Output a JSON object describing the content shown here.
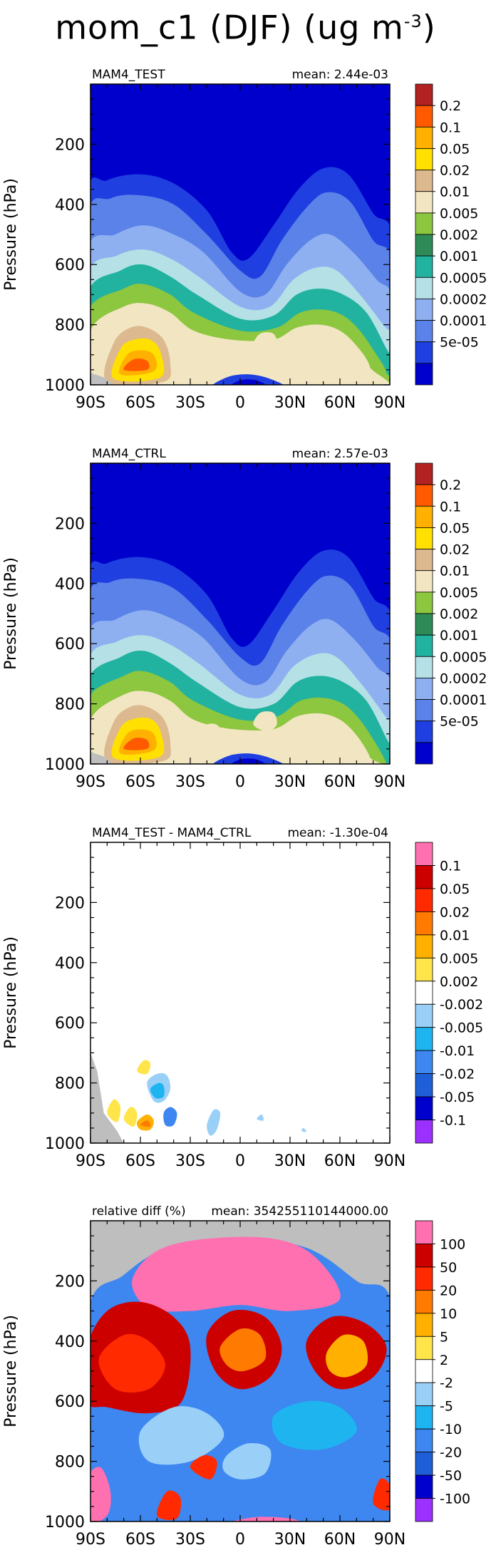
{
  "page_title": {
    "main": "mom_c1 (DJF) (ug m",
    "exponent": "-3",
    "tail": ")"
  },
  "colors": {
    "abs_levels": [
      "#0000cc",
      "#1f3fe0",
      "#5b82e8",
      "#8fb0f0",
      "#b4e0e6",
      "#22b2a0",
      "#2e8b57",
      "#8dc63f",
      "#f2e6c2",
      "#dcb98e",
      "#ffe000",
      "#ffb000",
      "#ff5a00",
      "#b22222"
    ],
    "diff_levels": [
      "#9b30ff",
      "#0000cd",
      "#1e5fd8",
      "#3e86f0",
      "#1eb4f0",
      "#9ad0f8",
      "#ffffff",
      "#ffe44a",
      "#ffb000",
      "#ff7a00",
      "#ff2a00",
      "#cd0000",
      "#ff70b0"
    ],
    "missing": "#bebebe"
  },
  "chart_data": [
    {
      "type": "contour",
      "panel_label": "MAM4_TEST",
      "mean_label": "mean: 2.44e-03",
      "ylabel": "Pressure (hPa)",
      "x_ticks": [
        "90S",
        "60S",
        "30S",
        "0",
        "30N",
        "60N",
        "90N"
      ],
      "y_ticks": [
        "200",
        "400",
        "600",
        "800",
        "1000"
      ],
      "ylim": [
        0,
        1000
      ],
      "xlim": [
        -90,
        90
      ],
      "colorbar_labels": [
        "0.2",
        "0.1",
        "0.05",
        "0.02",
        "0.01",
        "0.005",
        "0.002",
        "0.001",
        "0.0005",
        "0.0002",
        "0.0001",
        "5e-05"
      ]
    },
    {
      "type": "contour",
      "panel_label": "MAM4_CTRL",
      "mean_label": "mean: 2.57e-03",
      "ylabel": "Pressure (hPa)",
      "x_ticks": [
        "90S",
        "60S",
        "30S",
        "0",
        "30N",
        "60N",
        "90N"
      ],
      "y_ticks": [
        "200",
        "400",
        "600",
        "800",
        "1000"
      ],
      "ylim": [
        0,
        1000
      ],
      "xlim": [
        -90,
        90
      ],
      "colorbar_labels": [
        "0.2",
        "0.1",
        "0.05",
        "0.02",
        "0.01",
        "0.005",
        "0.002",
        "0.001",
        "0.0005",
        "0.0002",
        "0.0001",
        "5e-05"
      ]
    },
    {
      "type": "contour",
      "panel_label": "MAM4_TEST - MAM4_CTRL",
      "mean_label": "mean: -1.30e-04",
      "ylabel": "Pressure (hPa)",
      "x_ticks": [
        "90S",
        "60S",
        "30S",
        "0",
        "30N",
        "60N",
        "90N"
      ],
      "y_ticks": [
        "200",
        "400",
        "600",
        "800",
        "1000"
      ],
      "ylim": [
        0,
        1000
      ],
      "xlim": [
        -90,
        90
      ],
      "colorbar_labels": [
        "0.1",
        "0.05",
        "0.02",
        "0.01",
        "0.005",
        "0.002",
        "-0.002",
        "-0.005",
        "-0.01",
        "-0.02",
        "-0.05",
        "-0.1"
      ]
    },
    {
      "type": "contour",
      "panel_label": "relative diff (%)",
      "mean_label": "mean: 354255110144000.00",
      "ylabel": "Pressure (hPa)",
      "x_ticks": [
        "90S",
        "60S",
        "30S",
        "0",
        "30N",
        "60N",
        "90N"
      ],
      "y_ticks": [
        "200",
        "400",
        "600",
        "800",
        "1000"
      ],
      "ylim": [
        0,
        1000
      ],
      "xlim": [
        -90,
        90
      ],
      "colorbar_labels": [
        "100",
        "50",
        "20",
        "10",
        "5",
        "2",
        "-2",
        "-5",
        "-10",
        "-20",
        "-50",
        "-100"
      ]
    }
  ]
}
